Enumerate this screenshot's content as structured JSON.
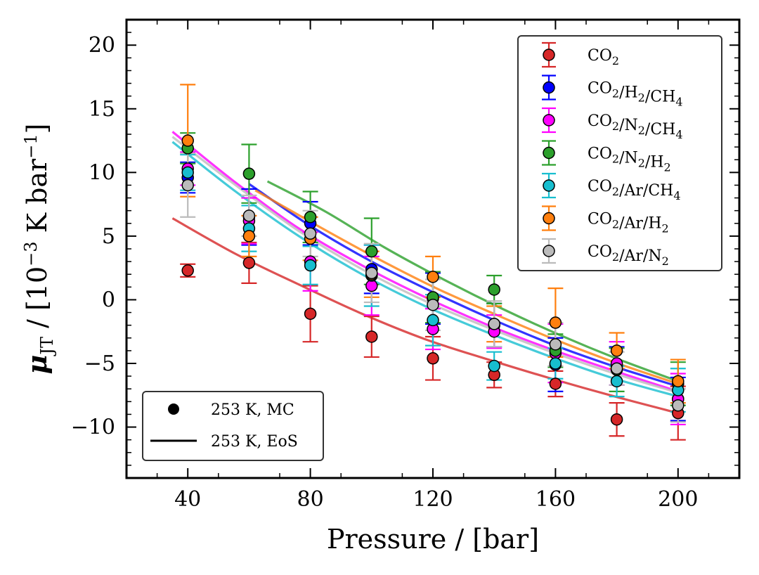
{
  "chart_data": {
    "type": "scatter",
    "xlabel": "Pressure / [bar]",
    "ylabel": {
      "symbol": "μ",
      "subscript": "JT",
      "unit_prefix": " / [10",
      "exponent1": "−3",
      "unit_middle": " K bar",
      "exponent2": "−1",
      "unit_suffix": "]"
    },
    "xlim": [
      20,
      220
    ],
    "ylim": [
      -14,
      22
    ],
    "xticks": [
      40,
      80,
      120,
      160,
      200
    ],
    "xtick_labels": [
      "40",
      "80",
      "120",
      "160",
      "200"
    ],
    "yticks": [
      -10,
      -5,
      0,
      5,
      10,
      15,
      20
    ],
    "ytick_labels": [
      "−10",
      "−5",
      "0",
      "5",
      "10",
      "15",
      "20"
    ],
    "grid": false,
    "series": [
      {
        "name": "CO2",
        "label_base": "CO",
        "label_parts": [
          [
            "CO",
            "2"
          ]
        ],
        "color": "#d62728",
        "x": [
          40,
          60,
          80,
          100,
          120,
          140,
          160,
          180,
          200
        ],
        "y": [
          2.3,
          2.9,
          -1.1,
          -2.9,
          -4.6,
          -5.9,
          -6.6,
          -9.4,
          -8.9
        ],
        "err": [
          0.5,
          1.6,
          2.2,
          1.6,
          1.7,
          1.0,
          1.0,
          1.3,
          2.1
        ],
        "eos": {
          "x_start": 35,
          "x_end": 200,
          "y": [
            6.4,
            3.6,
            1.2,
            -1.1,
            -3.1,
            -4.7,
            -6.2,
            -7.6,
            -8.9
          ]
        }
      },
      {
        "name": "CO2/H2/CH4",
        "label_parts": [
          [
            "CO",
            "2"
          ],
          [
            "H",
            "2"
          ],
          [
            "CH",
            "4"
          ]
        ],
        "color": "#0000ff",
        "x": [
          40,
          60,
          80,
          100,
          120,
          140,
          160,
          180,
          200
        ],
        "y": [
          9.6,
          6.5,
          6.0,
          2.4,
          0.1,
          -2.0,
          -5.1,
          -5.2,
          -7.8
        ],
        "err": [
          1.2,
          2.2,
          1.7,
          1.9,
          2.0,
          1.7,
          2.1,
          1.5,
          1.7
        ],
        "eos": {
          "x_start": 60,
          "x_end": 200,
          "y": [
            9.1,
            5.8,
            3.0,
            0.6,
            -1.6,
            -3.6,
            -5.3,
            -6.8
          ]
        }
      },
      {
        "name": "CO2/N2/CH4",
        "label_parts": [
          [
            "CO",
            "2"
          ],
          [
            "N",
            "2"
          ],
          [
            "CH",
            "4"
          ]
        ],
        "color": "#ff00ff",
        "x": [
          40,
          60,
          80,
          100,
          120,
          140,
          160,
          180,
          200
        ],
        "y": [
          10.3,
          6.2,
          3.0,
          1.1,
          -2.3,
          -2.5,
          -4.2,
          -5.0,
          -7.8
        ],
        "err": [
          1.3,
          1.8,
          2.3,
          2.3,
          1.6,
          1.3,
          2.3,
          1.7,
          2.0
        ],
        "eos": {
          "x_start": 35,
          "x_end": 200,
          "y": [
            13.2,
            9.2,
            5.6,
            2.7,
            0.2,
            -2.0,
            -3.9,
            -5.6,
            -7.2
          ]
        }
      },
      {
        "name": "CO2/N2/H2",
        "label_parts": [
          [
            "CO",
            "2"
          ],
          [
            "N",
            "2"
          ],
          [
            "H",
            "2"
          ]
        ],
        "color": "#2ca02c",
        "x": [
          40,
          60,
          80,
          100,
          120,
          140,
          160,
          180,
          200
        ],
        "y": [
          11.9,
          9.9,
          6.5,
          3.8,
          0.2,
          0.8,
          -4.0,
          -5.5,
          -6.6
        ],
        "err": [
          1.2,
          2.3,
          2.0,
          2.6,
          2.0,
          1.1,
          1.3,
          1.7,
          1.7
        ],
        "eos": {
          "x_start": 66,
          "x_end": 200,
          "y": [
            9.3,
            6.9,
            4.1,
            1.6,
            -0.7,
            -2.8,
            -4.7,
            -6.4
          ]
        }
      },
      {
        "name": "CO2/Ar/CH4",
        "label_parts": [
          [
            "CO",
            "2"
          ],
          [
            "Ar"
          ],
          [
            "CH",
            "4"
          ]
        ],
        "color": "#17becf",
        "x": [
          40,
          60,
          80,
          100,
          120,
          140,
          160,
          180,
          200
        ],
        "y": [
          10.0,
          5.6,
          2.7,
          1.9,
          -1.6,
          -5.2,
          -5.0,
          -6.4,
          -7.1
        ],
        "err": [
          1.4,
          1.8,
          1.5,
          2.4,
          2.0,
          1.1,
          1.2,
          1.2,
          1.7
        ],
        "eos": {
          "x_start": 35,
          "x_end": 200,
          "y": [
            12.4,
            8.5,
            5.0,
            2.0,
            -0.5,
            -2.6,
            -4.5,
            -6.2,
            -7.6
          ]
        }
      },
      {
        "name": "CO2/Ar/H2",
        "label_parts": [
          [
            "CO",
            "2"
          ],
          [
            "Ar"
          ],
          [
            "H",
            "2"
          ]
        ],
        "color": "#ff7f0e",
        "x": [
          40,
          60,
          80,
          100,
          120,
          140,
          160,
          180,
          200
        ],
        "y": [
          12.5,
          5.0,
          4.8,
          2.0,
          1.8,
          -1.9,
          -1.8,
          -4.0,
          -6.4
        ],
        "err": [
          4.4,
          1.6,
          1.7,
          1.8,
          1.6,
          1.4,
          2.7,
          1.4,
          1.7
        ],
        "eos": {
          "x_start": 62,
          "x_end": 200,
          "y": [
            8.6,
            5.9,
            3.3,
            0.9,
            -1.2,
            -3.2,
            -5.0,
            -6.6
          ]
        }
      },
      {
        "name": "CO2/Ar/N2",
        "label_parts": [
          [
            "CO",
            "2"
          ],
          [
            "Ar"
          ],
          [
            "N",
            "2"
          ]
        ],
        "color": "#bbbbbb",
        "x": [
          40,
          60,
          80,
          100,
          120,
          140,
          160,
          180,
          200
        ],
        "y": [
          9.0,
          6.6,
          5.2,
          2.1,
          -0.4,
          -1.9,
          -3.5,
          -5.4,
          -8.3
        ],
        "err": [
          2.5,
          1.6,
          1.8,
          2.3,
          2.0,
          1.8,
          1.7,
          1.3,
          1.3
        ],
        "eos": {
          "x_start": 35,
          "x_end": 200,
          "y": [
            12.8,
            9.0,
            5.4,
            2.4,
            -0.1,
            -2.2,
            -4.1,
            -5.8,
            -7.3
          ]
        }
      }
    ],
    "marker_legend": [
      {
        "label": "253 K, MC",
        "kind": "marker"
      },
      {
        "label": "253 K, EoS",
        "kind": "line"
      }
    ]
  }
}
